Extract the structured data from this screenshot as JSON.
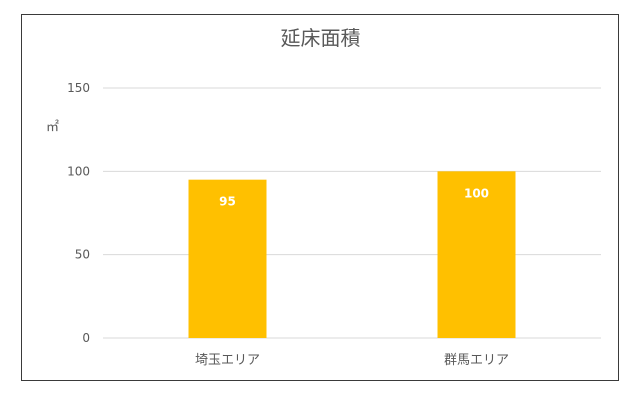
{
  "chart_data": {
    "type": "bar",
    "title": "延床面積",
    "ylabel": "㎡",
    "xlabel": "",
    "categories": [
      "埼玉エリア",
      "群馬エリア"
    ],
    "values": [
      95,
      100
    ],
    "ylim": [
      0,
      150
    ],
    "yticks": [
      0,
      50,
      100,
      150
    ],
    "grid": true,
    "legend": "none",
    "bar_color": "#FFC000",
    "grid_color": "#d9d9d9"
  }
}
